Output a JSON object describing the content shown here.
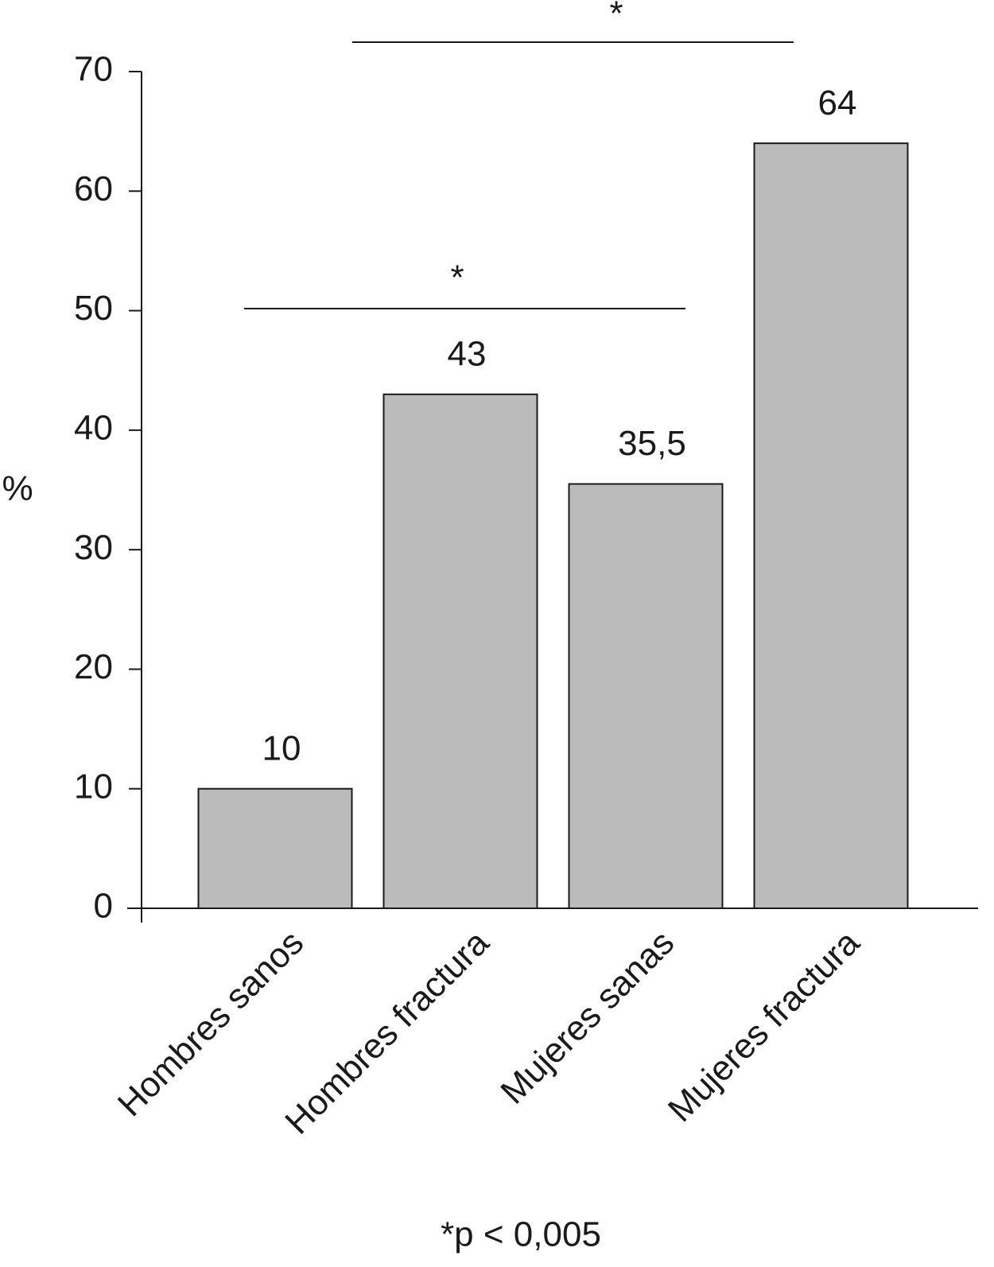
{
  "chart_data": {
    "type": "bar",
    "ylabel": "%",
    "categories": [
      "Hombres sanos",
      "Hombres fractura",
      "Mujeres sanas",
      "Mujeres fractura"
    ],
    "values": [
      10,
      43,
      35.5,
      64
    ],
    "value_labels": [
      "10",
      "43",
      "35,5",
      "64"
    ],
    "color": "#bbbbbb",
    "ylim": [
      0,
      70
    ],
    "yticks": [
      0,
      10,
      20,
      30,
      40,
      50,
      60,
      70
    ],
    "annotations": [
      "*",
      "*"
    ],
    "footnote": "*p < 0,005"
  }
}
